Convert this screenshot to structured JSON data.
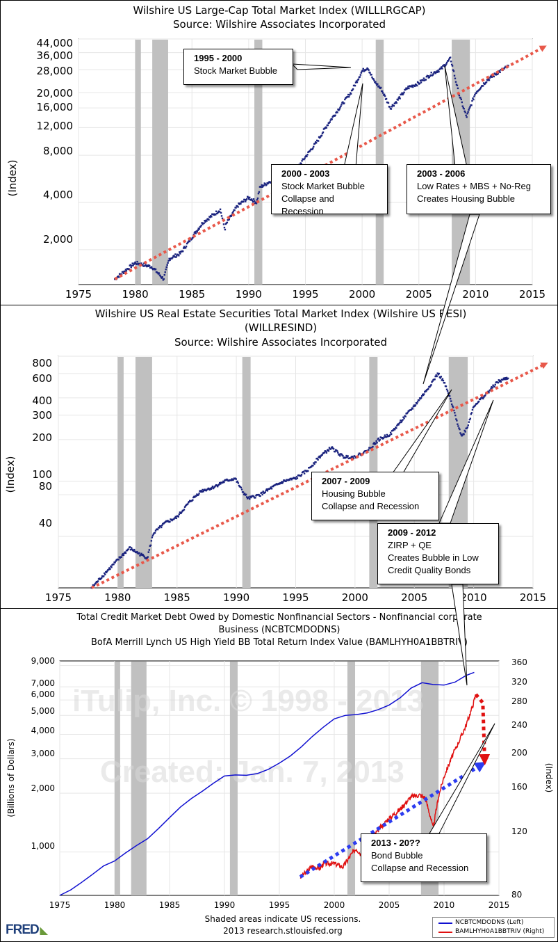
{
  "panels": [
    {
      "id": "p1",
      "title": [
        "Wilshire US Large-Cap Total Market Index (WILLLRGCAP)",
        "Source: Wilshire Associates Incorporated"
      ],
      "ylabel": "(Index)",
      "yticks": [
        "44,000",
        "36,000",
        "28,000",
        "20,000",
        "16,000",
        "12,000",
        "8,000",
        "4,000",
        "2,000"
      ],
      "xticks": [
        "1975",
        "1980",
        "1985",
        "1990",
        "1995",
        "2000",
        "2005",
        "2010",
        "2015"
      ]
    },
    {
      "id": "p2",
      "title": [
        "Wilshire US Real Estate Securities Total Market Index (Wilshire US RESI)",
        "(WILLRESIND)",
        "Source: Wilshire Associates Incorporated"
      ],
      "ylabel": "(Index)",
      "yticks": [
        "800",
        "600",
        "400",
        "300",
        "200",
        "100",
        "80",
        "40"
      ],
      "xticks": [
        "1975",
        "1980",
        "1985",
        "1990",
        "1995",
        "2000",
        "2005",
        "2010",
        "2015"
      ]
    },
    {
      "id": "p3",
      "title": [
        "Total Credit Market Debt Owed by Domestic Nonfinancial Sectors - Nonfinancial corporate",
        "Business (NCBTCMDODNS)",
        "BofA Merrill Lynch US High Yield BB Total Return Index Value (BAMLHYH0A1BBTRIV)"
      ],
      "ylabel_left": "(Billions of Dollars)",
      "ylabel_right": "(Index)",
      "yticks_left": [
        "9,000",
        "7,000",
        "6,000",
        "5,000",
        "4,000",
        "3,000",
        "2,000",
        "1,000"
      ],
      "yticks_right": [
        "360",
        "320",
        "280",
        "240",
        "200",
        "160",
        "120",
        "80"
      ],
      "xticks": [
        "1975",
        "1980",
        "1985",
        "1990",
        "1995",
        "2000",
        "2005",
        "2010",
        "2015"
      ],
      "watermark": [
        "iTulip, Inc. © 1998 - 2013",
        "Created: Jan. 7, 2013"
      ],
      "note": [
        "Shaded areas indicate US recessions.",
        "2013 research.stlouisfed.org"
      ],
      "legend": [
        {
          "label": "NCBTCMDODNS (Left)",
          "color": "#1010d0"
        },
        {
          "label": "BAMLHYH0A1BBTRIV (Right)",
          "color": "#e01010"
        }
      ]
    }
  ],
  "annotations": {
    "a1": {
      "heading": "1995 - 2000",
      "lines": [
        "Stock Market Bubble"
      ]
    },
    "a2": {
      "heading": "2000 - 2003",
      "lines": [
        "Stock Market Bubble",
        "Collapse and Recession"
      ]
    },
    "a3": {
      "heading": "2003 - 2006",
      "lines": [
        "Low Rates + MBS + No-Reg",
        "Creates Housing Bubble"
      ]
    },
    "a4": {
      "heading": "2007 - 2009",
      "lines": [
        "Housing Bubble",
        "Collapse and Recession"
      ]
    },
    "a5": {
      "heading": "2009 - 2012",
      "lines": [
        "ZIRP + QE",
        "Creates Bubble in Low",
        "Credit Quality Bonds"
      ]
    },
    "a6": {
      "heading": "2013 - 20??",
      "lines": [
        "Bond Bubble",
        "Collapse and Recession"
      ]
    }
  },
  "brand": "FRED",
  "colors": {
    "recession": "#c0c0c0",
    "index_dots": "#1a237e",
    "trend_red": "#e8584a",
    "trend_blue": "#2c3cf0",
    "debt_line": "#1010d0",
    "bond_line": "#e01010"
  },
  "chart_data": [
    {
      "type": "scatter",
      "title": "Wilshire US Large-Cap Total Market Index (WILLLRGCAP)",
      "subtitle": "Source: Wilshire Associates Incorporated",
      "ylabel": "(Index)",
      "log_scale": true,
      "xlim": [
        1975,
        2015
      ],
      "ylim": [
        1200,
        44000
      ],
      "recessions": [
        [
          1980.0,
          1980.5
        ],
        [
          1981.5,
          1982.9
        ],
        [
          1990.5,
          1991.2
        ],
        [
          2001.2,
          2001.9
        ],
        [
          2007.9,
          2009.5
        ]
      ],
      "series": [
        {
          "x": [
            1978.2,
            1979,
            1980,
            1980.8,
            1981.5,
            1982.5,
            1983,
            1984,
            1985,
            1986,
            1987.5,
            1987.9,
            1988,
            1989,
            1990,
            1990.7,
            1991,
            1992,
            1993,
            1994,
            1995,
            1996,
            1997,
            1998,
            1999,
            2000,
            2000.5,
            2001,
            2001.7,
            2002.5,
            2003,
            2004,
            2005,
            2006,
            2007,
            2007.8,
            2008.5,
            2009.2,
            2010,
            2011,
            2012,
            2012.9
          ],
          "values": [
            1300,
            1450,
            1650,
            1600,
            1550,
            1300,
            1750,
            1900,
            2400,
            3000,
            3600,
            2700,
            2900,
            3800,
            4300,
            4000,
            5000,
            5500,
            6000,
            6200,
            7800,
            9700,
            12700,
            16000,
            20000,
            27500,
            29000,
            24000,
            21000,
            16000,
            17500,
            21500,
            23000,
            26000,
            28500,
            33000,
            20000,
            14000,
            20000,
            24000,
            27000,
            29500
          ]
        }
      ],
      "trend": {
        "x": [
          1978.2,
          2016
        ],
        "values": [
          1300,
          39000
        ]
      }
    },
    {
      "type": "scatter",
      "title": "Wilshire US Real Estate Securities Total Market Index (Wilshire US RESI)",
      "subtitle": "(WILLRESIND) Source: Wilshire Associates Incorporated",
      "ylabel": "(Index)",
      "log_scale": true,
      "xlim": [
        1975,
        2015
      ],
      "ylim": [
        17,
        800
      ],
      "recessions": [
        [
          1980.0,
          1980.5
        ],
        [
          1981.5,
          1982.9
        ],
        [
          1990.5,
          1991.2
        ],
        [
          2001.2,
          2001.9
        ],
        [
          2007.9,
          2009.5
        ]
      ],
      "series": [
        {
          "x": [
            1977.8,
            1979,
            1980,
            1981,
            1981.8,
            1982.5,
            1983,
            1984,
            1985,
            1986,
            1987,
            1988,
            1989,
            1989.9,
            1990.5,
            1991,
            1992,
            1993,
            1994,
            1995,
            1996,
            1997,
            1998,
            1999,
            2000,
            2001,
            2002,
            2003,
            2004,
            2005,
            2006,
            2007,
            2007.5,
            2008,
            2009,
            2009.5,
            2010,
            2011,
            2012,
            2012.9
          ],
          "values": [
            17,
            22,
            27,
            33,
            30,
            28,
            42,
            50,
            55,
            70,
            85,
            90,
            100,
            105,
            85,
            75,
            80,
            90,
            100,
            105,
            120,
            150,
            175,
            150,
            150,
            165,
            200,
            220,
            280,
            350,
            450,
            600,
            520,
            400,
            210,
            250,
            350,
            420,
            520,
            560
          ]
        }
      ],
      "trend": {
        "x": [
          1977.8,
          2016
        ],
        "values": [
          17,
          700
        ]
      }
    },
    {
      "type": "line",
      "title": "Total Credit Market Debt Owed by Domestic Nonfinancial Sectors - Nonfinancial corporate Business (NCBTCMDODNS)",
      "subtitle": "BofA Merrill Lynch US High Yield BB Total Return Index Value (BAMLHYH0A1BBTRIV)",
      "ylabel_left": "(Billions of Dollars)",
      "ylabel_right": "(Index)",
      "xlim": [
        1975,
        2015
      ],
      "ylim_left": [
        600,
        9500
      ],
      "ylim_right": [
        80,
        360
      ],
      "recessions": [
        [
          1980.0,
          1980.5
        ],
        [
          1981.5,
          1982.9
        ],
        [
          1990.5,
          1991.2
        ],
        [
          2001.2,
          2001.9
        ],
        [
          2007.9,
          2009.5
        ]
      ],
      "series": [
        {
          "name": "NCBTCMDODNS (Left)",
          "axis": "left",
          "x": [
            1975,
            1976,
            1977,
            1978,
            1979,
            1980,
            1981,
            1982,
            1983,
            1984,
            1985,
            1986,
            1987,
            1988,
            1989,
            1990,
            1991,
            1992,
            1993,
            1994,
            1995,
            1996,
            1997,
            1998,
            1999,
            2000,
            2001,
            2002,
            2003,
            2004,
            2005,
            2006,
            2007,
            2008,
            2009,
            2010,
            2011,
            2012,
            2012.75
          ],
          "values": [
            600,
            640,
            700,
            770,
            850,
            900,
            990,
            1080,
            1170,
            1320,
            1500,
            1700,
            1880,
            2050,
            2250,
            2450,
            2480,
            2470,
            2520,
            2650,
            2850,
            3100,
            3450,
            3900,
            4350,
            4800,
            5000,
            5050,
            5150,
            5350,
            5650,
            6150,
            6900,
            7350,
            7200,
            7150,
            7400,
            8000,
            8300
          ]
        },
        {
          "name": "BAMLHYH0A1BBTRIV (Right)",
          "axis": "right",
          "x": [
            1996.9,
            1997.5,
            1998,
            1998.7,
            1999,
            2000,
            2000.8,
            2001.5,
            2002,
            2002.5,
            2002.8,
            2003,
            2004,
            2005,
            2006,
            2007,
            2007.8,
            2008.3,
            2008.8,
            2009,
            2009.5,
            2010,
            2010.8,
            2011.5,
            2012,
            2012.6,
            2012.9
          ],
          "values": [
            102,
            108,
            115,
            112,
            118,
            118,
            114,
            128,
            136,
            128,
            124,
            140,
            158,
            172,
            183,
            198,
            200,
            196,
            172,
            160,
            198,
            222,
            248,
            268,
            283,
            306,
            320
          ]
        }
      ],
      "trend_blue": {
        "x": [
          1996.9,
          2013.4
        ],
        "values": [
          102,
          236
        ]
      },
      "trend_red_drop": {
        "x": [
          2012.9,
          2013.7
        ],
        "values": [
          320,
          242
        ]
      }
    }
  ]
}
